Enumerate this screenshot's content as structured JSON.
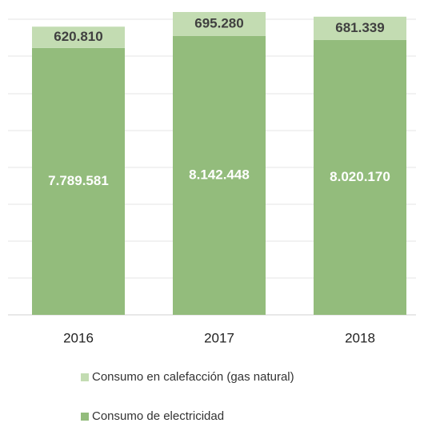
{
  "chart_data": {
    "type": "stacked_bar",
    "categories": [
      "2016",
      "2017",
      "2018"
    ],
    "series": [
      {
        "name": "Consumo de electricidad",
        "color": "#93bc7c",
        "values": [
          7789581,
          8142448,
          8020170
        ],
        "value_labels": [
          "7.789.581",
          "8.142.448",
          "8.020.170"
        ]
      },
      {
        "name": "Consumo en calefacción (gas natural)",
        "color": "#c3dcb2",
        "values": [
          620810,
          695280,
          681339
        ],
        "value_labels": [
          "620.810",
          "695.280",
          "681.339"
        ]
      }
    ],
    "grid": true
  }
}
